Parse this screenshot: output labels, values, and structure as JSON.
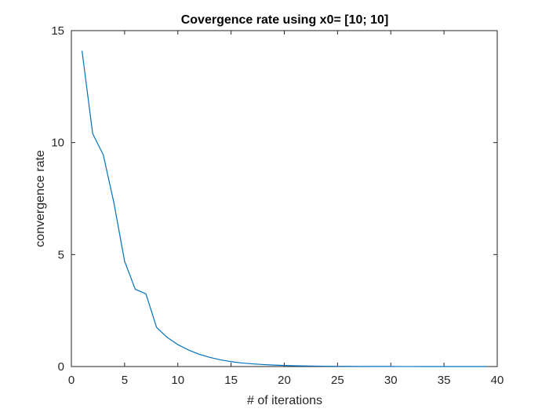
{
  "chart_data": {
    "type": "line",
    "title": "Covergence rate using x0= [10; 10]",
    "xlabel": "# of iterations",
    "ylabel": "convergence rate",
    "xlim": [
      0,
      40
    ],
    "ylim": [
      0,
      15
    ],
    "xticks": [
      0,
      5,
      10,
      15,
      20,
      25,
      30,
      35,
      40
    ],
    "yticks": [
      0,
      5,
      10,
      15
    ],
    "grid": false,
    "box": true,
    "colors": {
      "line": "#0072BD",
      "axes": "#262626",
      "background": "#ffffff"
    },
    "x": [
      1,
      2,
      3,
      4,
      5,
      6,
      7,
      8,
      9,
      10,
      11,
      12,
      13,
      14,
      15,
      16,
      17,
      18,
      19,
      20,
      21,
      22,
      23,
      24,
      25,
      26,
      27,
      28,
      29,
      30,
      31,
      32,
      33,
      34,
      35,
      36,
      37,
      38,
      39
    ],
    "y": [
      14.1,
      10.4,
      9.45,
      7.3,
      4.7,
      3.45,
      3.25,
      1.75,
      1.3,
      0.98,
      0.74,
      0.55,
      0.41,
      0.3,
      0.22,
      0.16,
      0.12,
      0.09,
      0.065,
      0.048,
      0.035,
      0.026,
      0.019,
      0.014,
      0.01,
      0.008,
      0.006,
      0.005,
      0.004,
      0.003,
      0.002,
      0.002,
      0.001,
      0.001,
      0.001,
      0.001,
      0.001,
      0.001,
      0.001
    ]
  }
}
